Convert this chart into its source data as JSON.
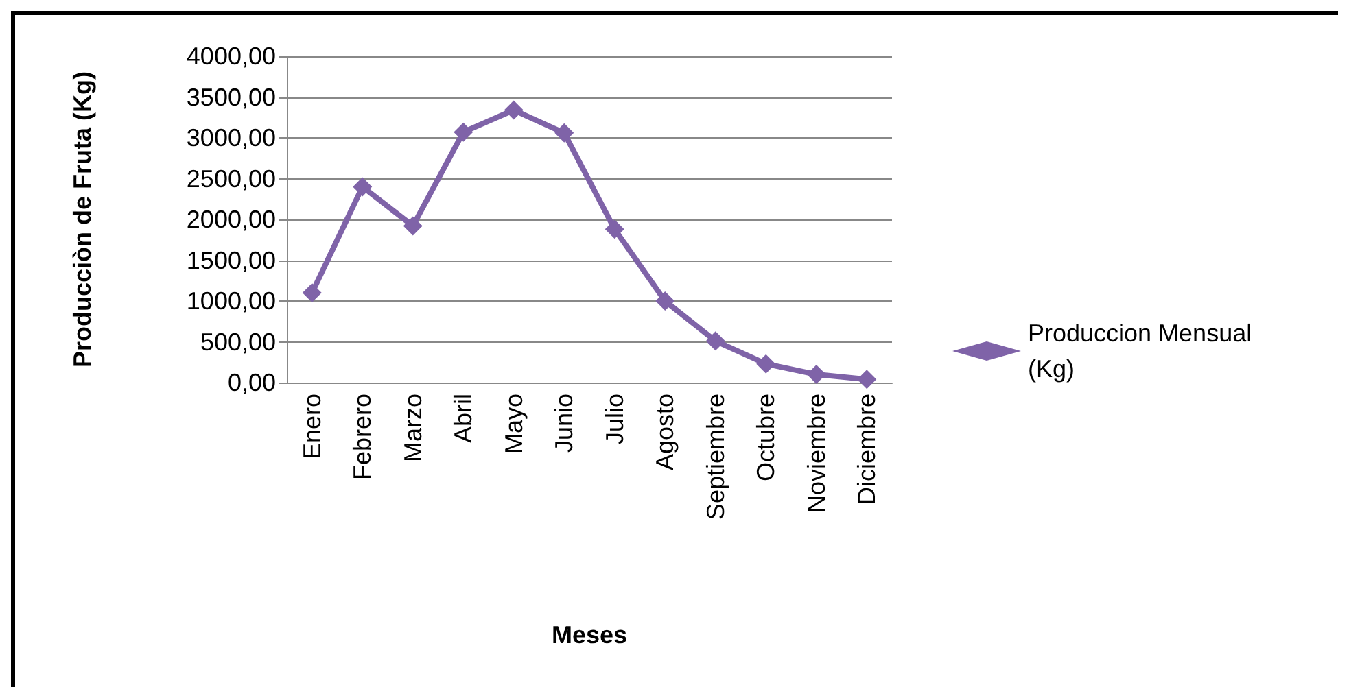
{
  "chart_data": {
    "type": "line",
    "xlabel": "Meses",
    "ylabel": "Producciòn de Fruta (Kg)",
    "categories": [
      "Enero",
      "Febrero",
      "Marzo",
      "Abril",
      "Mayo",
      "Junio",
      "Julio",
      "Agosto",
      "Septiembre",
      "Octubre",
      "Noviembre",
      "Diciembre"
    ],
    "series": [
      {
        "name": "Produccion Mensual (Kg)",
        "color": "#7f63a8",
        "values": [
          1100,
          2400,
          1920,
          3070,
          3340,
          3060,
          1880,
          1000,
          510,
          230,
          100,
          40
        ]
      }
    ],
    "ylim": [
      0,
      4000
    ],
    "yticks": [
      {
        "value": 0,
        "label": "0,00"
      },
      {
        "value": 500,
        "label": "500,00"
      },
      {
        "value": 1000,
        "label": "1000,00"
      },
      {
        "value": 1500,
        "label": "1500,00"
      },
      {
        "value": 2000,
        "label": "2000,00"
      },
      {
        "value": 2500,
        "label": "2500,00"
      },
      {
        "value": 3000,
        "label": "3000,00"
      },
      {
        "value": 3500,
        "label": "3500,00"
      },
      {
        "value": 4000,
        "label": "4000,00"
      }
    ],
    "grid": "y",
    "legend": "right",
    "marker": "diamond",
    "line_style": "solid"
  }
}
